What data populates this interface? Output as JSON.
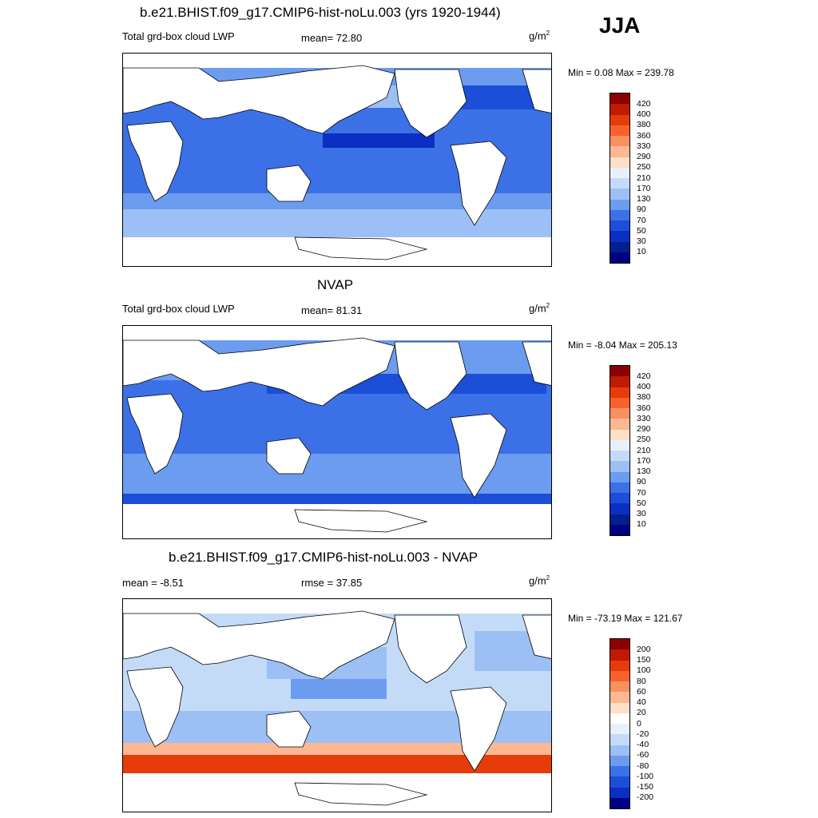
{
  "season": "JJA",
  "unit_text": "g/m",
  "unit_exp": "2",
  "panels": [
    {
      "title": "b.e21.BHIST.f09_g17.CMIP6-hist-noLu.003 (yrs 1920-1944)",
      "left_label": "Total grd-box cloud LWP",
      "center_label": "mean=  72.80",
      "minmax": "Min =   0.08 Max = 239.78",
      "colorbar_labels": [
        "420",
        "400",
        "380",
        "360",
        "330",
        "290",
        "250",
        "210",
        "170",
        "130",
        "90",
        "70",
        "50",
        "30",
        "10"
      ]
    },
    {
      "title": "NVAP",
      "left_label": "Total grd-box cloud LWP",
      "center_label": "mean=  81.31",
      "minmax": "Min =  -8.04 Max = 205.13",
      "colorbar_labels": [
        "420",
        "400",
        "380",
        "360",
        "330",
        "290",
        "250",
        "210",
        "170",
        "130",
        "90",
        "70",
        "50",
        "30",
        "10"
      ]
    },
    {
      "title": "b.e21.BHIST.f09_g17.CMIP6-hist-noLu.003 - NVAP",
      "left_label": "mean =  -8.51",
      "center_label": "rmse =  37.85",
      "minmax": "Min = -73.19 Max = 121.67",
      "colorbar_labels": [
        "200",
        "150",
        "100",
        "80",
        "60",
        "40",
        "20",
        "0",
        "-20",
        "-40",
        "-60",
        "-80",
        "-100",
        "-150",
        "-200"
      ]
    }
  ],
  "colors": {
    "lwp_scale": [
      "#8b0000",
      "#c01a00",
      "#e63c0a",
      "#f6622a",
      "#f99060",
      "#fbb893",
      "#fde0c8",
      "#e8f1fb",
      "#c4dbf8",
      "#9cc0f5",
      "#6b9cf0",
      "#3c70e6",
      "#1d4ed8",
      "#0a2fc2",
      "#00208f",
      "#000080"
    ],
    "diff_scale": [
      "#8b0000",
      "#c01a00",
      "#e63c0a",
      "#f6622a",
      "#f99060",
      "#fbb893",
      "#fde0c8",
      "#ffffff",
      "#e8f1fb",
      "#c4dbf8",
      "#9cc0f5",
      "#6b9cf0",
      "#3c70e6",
      "#1d4ed8",
      "#0a2fc2",
      "#000080"
    ]
  }
}
